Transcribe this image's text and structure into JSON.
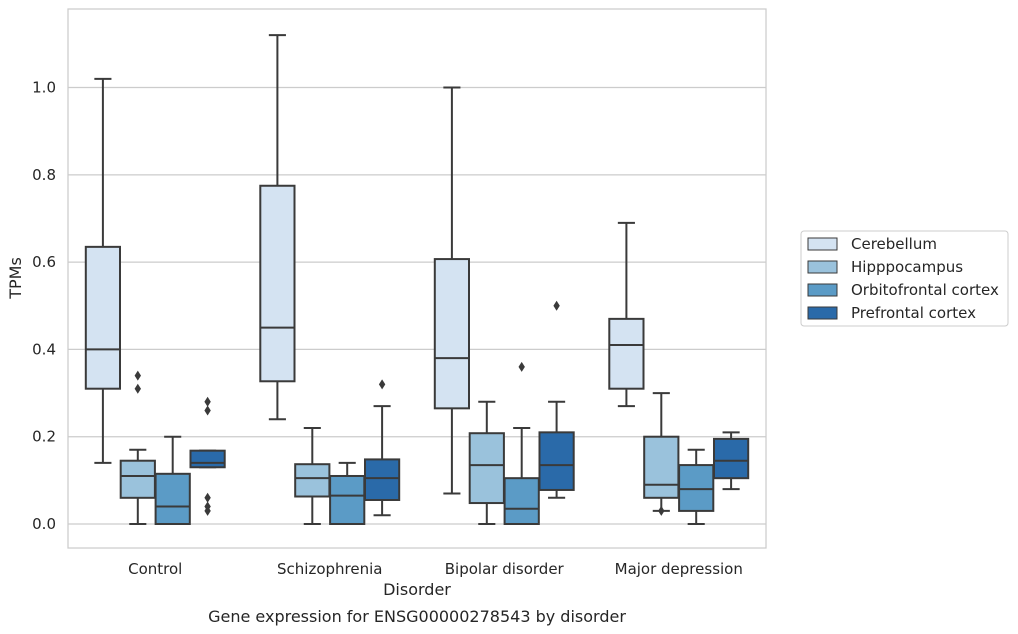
{
  "caption": "Gene expression for ENSG00000278543 by disorder",
  "chart_data": {
    "type": "box",
    "title": "",
    "xlabel": "Disorder",
    "ylabel": "TPMs",
    "ylim": [
      -0.055,
      1.18
    ],
    "yticks": [
      0.0,
      0.2,
      0.4,
      0.6,
      0.8,
      1.0
    ],
    "ytick_labels": [
      "0.0",
      "0.2",
      "0.4",
      "0.6",
      "0.8",
      "1.0"
    ],
    "grid": "y",
    "legend_position": "right",
    "categories": [
      "Control",
      "Schizophrenia",
      "Bipolar disorder",
      "Major depression"
    ],
    "series": [
      {
        "name": "Cerebellum",
        "color": "#d4e3f2",
        "boxes": [
          {
            "whislo": 0.14,
            "q1": 0.31,
            "med": 0.4,
            "q3": 0.635,
            "whishi": 1.02,
            "fliers": []
          },
          {
            "whislo": 0.24,
            "q1": 0.327,
            "med": 0.45,
            "q3": 0.775,
            "whishi": 1.12,
            "fliers": []
          },
          {
            "whislo": 0.07,
            "q1": 0.265,
            "med": 0.38,
            "q3": 0.607,
            "whishi": 1.0,
            "fliers": []
          },
          {
            "whislo": 0.27,
            "q1": 0.31,
            "med": 0.41,
            "q3": 0.47,
            "whishi": 0.69,
            "fliers": []
          }
        ]
      },
      {
        "name": "Hipppocampus",
        "color": "#9ac2dc",
        "boxes": [
          {
            "whislo": 0.0,
            "q1": 0.06,
            "med": 0.11,
            "q3": 0.145,
            "whishi": 0.17,
            "fliers": [
              0.34,
              0.31
            ]
          },
          {
            "whislo": 0.0,
            "q1": 0.063,
            "med": 0.105,
            "q3": 0.137,
            "whishi": 0.22,
            "fliers": []
          },
          {
            "whislo": 0.0,
            "q1": 0.048,
            "med": 0.135,
            "q3": 0.208,
            "whishi": 0.28,
            "fliers": []
          },
          {
            "whislo": 0.03,
            "q1": 0.06,
            "med": 0.09,
            "q3": 0.2,
            "whishi": 0.3,
            "fliers": [
              0.03
            ]
          }
        ]
      },
      {
        "name": "Orbitofrontal cortex",
        "color": "#5b9bc6",
        "boxes": [
          {
            "whislo": 0.0,
            "q1": 0.0,
            "med": 0.04,
            "q3": 0.115,
            "whishi": 0.2,
            "fliers": []
          },
          {
            "whislo": 0.0,
            "q1": 0.0,
            "med": 0.065,
            "q3": 0.11,
            "whishi": 0.14,
            "fliers": []
          },
          {
            "whislo": 0.0,
            "q1": 0.0,
            "med": 0.035,
            "q3": 0.105,
            "whishi": 0.22,
            "fliers": [
              0.36
            ]
          },
          {
            "whislo": 0.0,
            "q1": 0.03,
            "med": 0.08,
            "q3": 0.135,
            "whishi": 0.17,
            "fliers": []
          }
        ]
      },
      {
        "name": "Prefrontal cortex",
        "color": "#2a6aa9",
        "boxes": [
          {
            "whislo": 0.13,
            "q1": 0.13,
            "med": 0.14,
            "q3": 0.168,
            "whishi": 0.168,
            "fliers": [
              0.28,
              0.26,
              0.06,
              0.04,
              0.03
            ]
          },
          {
            "whislo": 0.02,
            "q1": 0.055,
            "med": 0.105,
            "q3": 0.148,
            "whishi": 0.27,
            "fliers": [
              0.32
            ]
          },
          {
            "whislo": 0.06,
            "q1": 0.078,
            "med": 0.135,
            "q3": 0.21,
            "whishi": 0.28,
            "fliers": [
              0.5
            ]
          },
          {
            "whislo": 0.08,
            "q1": 0.105,
            "med": 0.145,
            "q3": 0.195,
            "whishi": 0.21,
            "fliers": []
          }
        ]
      }
    ]
  }
}
